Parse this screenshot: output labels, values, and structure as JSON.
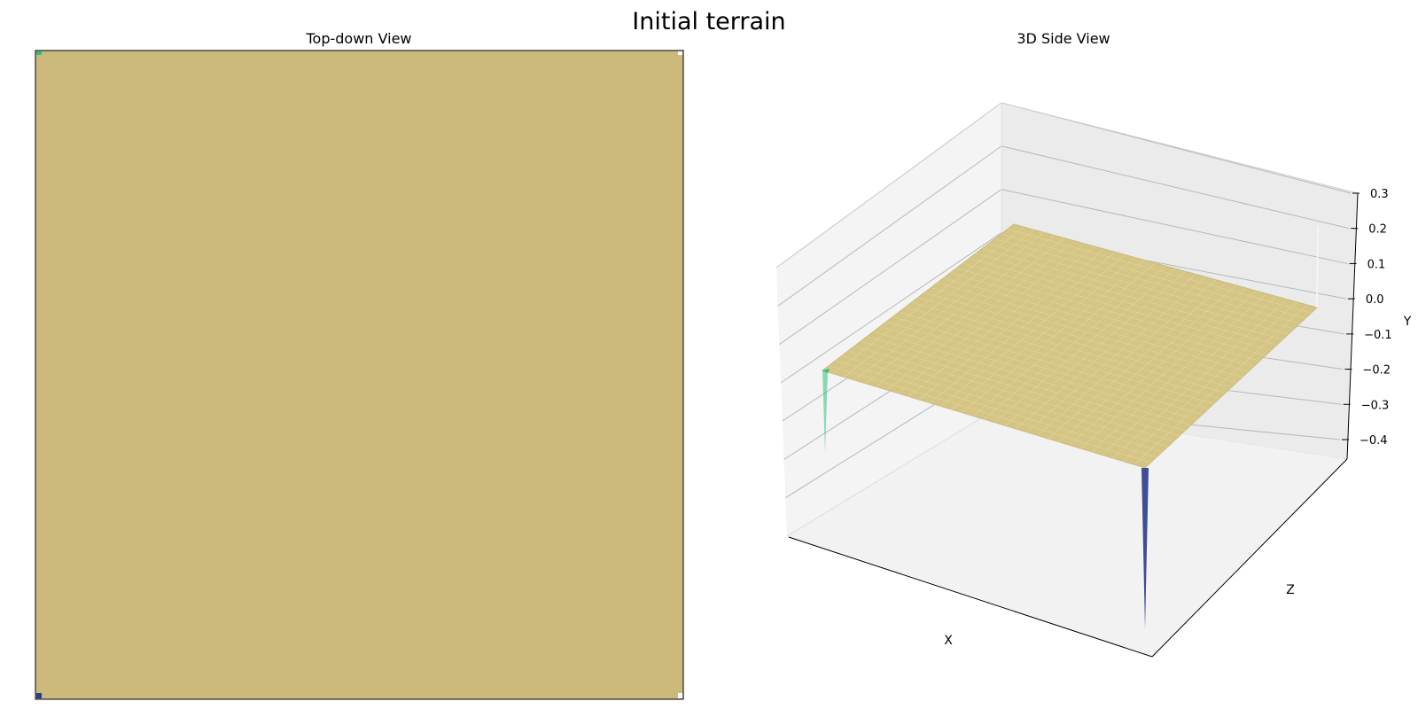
{
  "figure": {
    "title": "Initial terrain"
  },
  "chart_data": [
    {
      "type": "heatmap",
      "title": "Top-down View",
      "fill_color": "#cbba7c",
      "frame": true,
      "corner_markers": [
        {
          "corner": "top-left",
          "color": "#2ec27e"
        },
        {
          "corner": "bottom-left",
          "color": "#2b3a8c"
        },
        {
          "corner": "top-right",
          "color": "#ffffff"
        },
        {
          "corner": "bottom-right",
          "color": "#ffffff"
        }
      ]
    },
    {
      "type": "surface3d",
      "title": "3D Side View",
      "xlabel": "X",
      "zlabel": "Z",
      "ylabel": "Y",
      "y_ticks": [
        "0.3",
        "0.2",
        "0.1",
        "0.0",
        "−0.1",
        "−0.2",
        "−0.3",
        "−0.4"
      ],
      "y_range": [
        -0.4,
        0.3
      ],
      "surface_level": 0.0,
      "surface_color": "#d4c585",
      "grid": true,
      "spikes": [
        {
          "corner": "near",
          "min_value": -0.4,
          "color": "#2b3a8c"
        },
        {
          "corner": "left",
          "min_value": -0.2,
          "color": "#2ec27e"
        },
        {
          "corner": "far-right",
          "min_value": 0.3,
          "color": "#ffffff"
        }
      ]
    }
  ]
}
